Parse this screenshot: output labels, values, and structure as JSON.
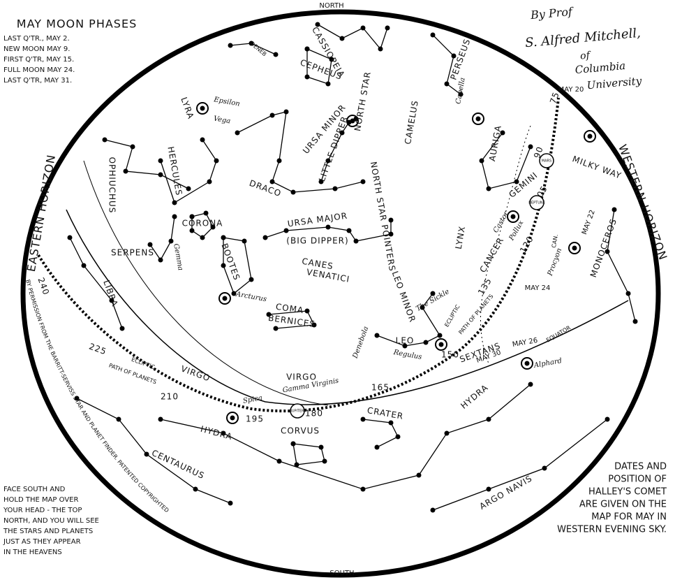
{
  "header": {
    "top": "NORTH",
    "bottom": "SOUTH",
    "east": "EASTERN HORIZON",
    "west": "WESTERN HORIZON"
  },
  "moon_phases": {
    "title": "MAY MOON PHASES",
    "lines": [
      "LAST Q'TR., MAY 2.",
      "NEW MOON MAY 9.",
      "FIRST Q'TR, MAY 15.",
      "FULL MOON MAY 24.",
      "LAST Q'TR, MAY 31."
    ]
  },
  "author": [
    "By Prof",
    "S. Alfred Mitchell,",
    "of",
    "Columbia",
    "University"
  ],
  "notes": {
    "left": [
      "FACE SOUTH AND",
      "HOLD THE MAP OVER",
      "YOUR HEAD - THE TOP",
      "NORTH, AND YOU WILL SEE",
      "THE STARS AND PLANETS",
      "JUST AS THEY APPEAR",
      "IN THE HEAVENS"
    ],
    "right": [
      "DATES AND",
      "POSITION OF",
      "HALLEY'S COMET",
      "ARE GIVEN ON THE",
      "MAP FOR MAY IN",
      "WESTERN EVENING SKY."
    ]
  },
  "permission": "BY PERMISSION FROM THE BARRITT-SERVISS STAR AND PLANET FINDER. PATENTED COPYRIGHTED",
  "constellations": [
    "CASSIOPEIA",
    "CEPHEUS",
    "PERSEUS",
    "LYRA",
    "HERCULES",
    "OPHIUCHUS",
    "DRACO",
    "URSA MINOR",
    "LITTLE DIPPER",
    "NORTH STAR",
    "CAMELUS",
    "AURIGA",
    "GEMINI",
    "URSA MAJOR",
    "(BIG DIPPER)",
    "NORTH STAR POINTERS",
    "CORONA",
    "BOOTES",
    "CANES",
    "VENATICI",
    "LEO MINOR",
    "LYNX",
    "CANCER",
    "COMA",
    "BERNICES",
    "SERPENS",
    "LIBRA",
    "VIRGO",
    "VIRGO",
    "LEO",
    "HYDRA",
    "HYDRA",
    "CORVUS",
    "CRATER",
    "CENTAURUS",
    "ARGO NAVIS",
    "MONOCEROS",
    "SEXTANS",
    "MILKY WAY",
    "ECLIPTIC",
    "ECLIPTIC",
    "EQUATOR",
    "PATH OF PLANETS",
    "PATH OF PLANETS",
    "DENEB",
    "CAN."
  ],
  "stars": [
    "Vega",
    "Capella",
    "Castor",
    "Pollux",
    "Procyon",
    "Arcturus",
    "Regulus",
    "Spica",
    "Alphard",
    "Denebola",
    "Gamma Virginis",
    "Epsilon",
    "Gemma",
    "The Sickle"
  ],
  "ecliptic_degrees": [
    "240",
    "225",
    "210",
    "195",
    "180",
    "165",
    "150",
    "135",
    "120",
    "105",
    "90",
    "75"
  ],
  "comet_dates": [
    "MAY 20",
    "MAY 22",
    "MAY 24",
    "MAY 26",
    "MAY 30"
  ],
  "planets": [
    "JUPITER",
    "NEPTUNE",
    "MARS"
  ]
}
